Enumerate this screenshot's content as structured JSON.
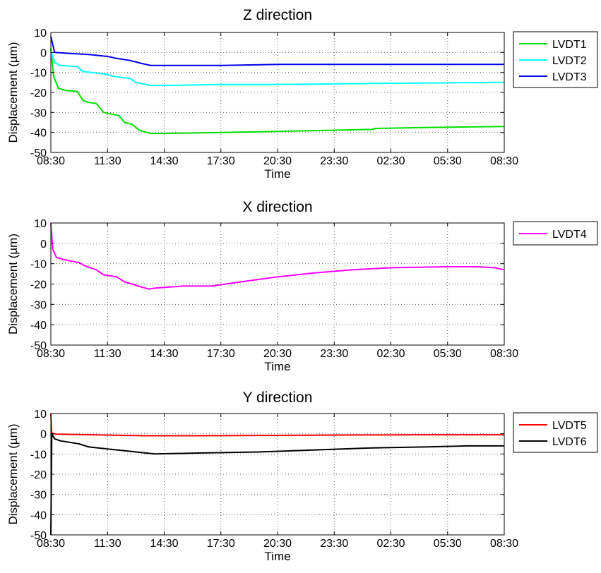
{
  "chart_data": [
    {
      "type": "line",
      "title": "Z direction",
      "xlabel": "Time",
      "ylabel": "Displacement (µm)",
      "x_ticks": [
        "08:30",
        "11:30",
        "14:30",
        "17:30",
        "20:30",
        "23:30",
        "02:30",
        "05:30",
        "08:30"
      ],
      "x_unit": "hours since start",
      "xlim": [
        0,
        24
      ],
      "ylim": [
        -50,
        10
      ],
      "y_ticks": [
        10,
        0,
        -10,
        -20,
        -30,
        -40,
        -50
      ],
      "grid": true,
      "legend": "outside-right-top",
      "series": [
        {
          "name": "LVDT1",
          "color": "#00e000",
          "x": [
            0,
            0.15,
            0.4,
            0.8,
            1.4,
            1.7,
            2.0,
            2.4,
            2.8,
            3.3,
            3.6,
            3.9,
            4.3,
            4.7,
            5.3,
            6,
            9,
            12,
            17,
            17.2,
            20,
            24
          ],
          "y": [
            2,
            -12,
            -18,
            -19,
            -19.5,
            -24,
            -25,
            -25.5,
            -30,
            -31,
            -31.5,
            -35,
            -36,
            -39,
            -40.5,
            -40.5,
            -40,
            -39.5,
            -38.5,
            -38,
            -37.5,
            -37
          ]
        },
        {
          "name": "LVDT2",
          "color": "#00ffff",
          "x": [
            0,
            0.2,
            0.5,
            1.4,
            1.7,
            3.0,
            3.3,
            4.2,
            4.5,
            5.3,
            6,
            9,
            12,
            17,
            24
          ],
          "y": [
            1,
            -5,
            -6.5,
            -7,
            -9.5,
            -11,
            -12,
            -13,
            -15,
            -16.5,
            -16.5,
            -16,
            -16,
            -15.5,
            -15
          ]
        },
        {
          "name": "LVDT3",
          "color": "#0000ee",
          "x": [
            0,
            0.2,
            1.0,
            2.0,
            3.0,
            3.5,
            4.2,
            4.8,
            5.3,
            6,
            9,
            12,
            17,
            24
          ],
          "y": [
            8,
            0,
            -0.5,
            -1,
            -2,
            -3,
            -4,
            -5.5,
            -6.5,
            -6.5,
            -6.5,
            -6,
            -6,
            -6
          ]
        }
      ]
    },
    {
      "type": "line",
      "title": "X direction",
      "xlabel": "Time",
      "ylabel": "Displacement (µm)",
      "x_ticks": [
        "08:30",
        "11:30",
        "14:30",
        "17:30",
        "20:30",
        "23:30",
        "02:30",
        "05:30",
        "08:30"
      ],
      "x_unit": "hours since start",
      "xlim": [
        0,
        24
      ],
      "ylim": [
        -50,
        10
      ],
      "y_ticks": [
        10,
        0,
        -10,
        -20,
        -30,
        -40,
        -50
      ],
      "grid": true,
      "legend": "outside-right-top",
      "series": [
        {
          "name": "LVDT4",
          "color": "#ff00ff",
          "x": [
            0,
            0.1,
            0.3,
            0.7,
            1.5,
            1.8,
            2.4,
            2.8,
            3.5,
            3.9,
            4.3,
            4.8,
            5.2,
            5.5,
            7,
            8.5,
            10,
            12,
            14,
            16,
            18,
            21,
            22.5,
            23.5,
            24
          ],
          "y": [
            10,
            -3,
            -7,
            -8,
            -9.5,
            -11,
            -13,
            -15.5,
            -16.5,
            -19,
            -20,
            -21.5,
            -22.5,
            -22,
            -21,
            -21,
            -19,
            -16.5,
            -14.5,
            -13,
            -12,
            -11.5,
            -11.5,
            -12,
            -13
          ]
        }
      ]
    },
    {
      "type": "line",
      "title": "Y direction",
      "xlabel": "Time",
      "ylabel": "Displacement (µm)",
      "x_ticks": [
        "08:30",
        "11:30",
        "14:30",
        "17:30",
        "20:30",
        "23:30",
        "02:30",
        "05:30",
        "08:30"
      ],
      "x_unit": "hours since start",
      "xlim": [
        0,
        24
      ],
      "ylim": [
        -50,
        10
      ],
      "y_ticks": [
        10,
        0,
        -10,
        -20,
        -30,
        -40,
        -50
      ],
      "grid": true,
      "legend": "outside-right-top",
      "series": [
        {
          "name": "LVDT5",
          "color": "#ff0000",
          "x": [
            0,
            0.05,
            0.3,
            2,
            5,
            8,
            12,
            16,
            20,
            24
          ],
          "y": [
            10,
            0.2,
            -0.2,
            -0.5,
            -1,
            -1,
            -0.8,
            -0.6,
            -0.5,
            -0.5
          ]
        },
        {
          "name": "LVDT6",
          "color": "#000000",
          "x": [
            0,
            0.05,
            0.2,
            0.5,
            1.5,
            2.0,
            2.5,
            3.0,
            4.0,
            5.0,
            5.5,
            8,
            11,
            14,
            17,
            20,
            22,
            24
          ],
          "y": [
            -50,
            0,
            -2.5,
            -3.5,
            -5,
            -6.5,
            -7,
            -7.5,
            -8.5,
            -9.5,
            -10,
            -9.5,
            -9,
            -8,
            -7,
            -6.5,
            -6,
            -6
          ]
        }
      ]
    }
  ]
}
